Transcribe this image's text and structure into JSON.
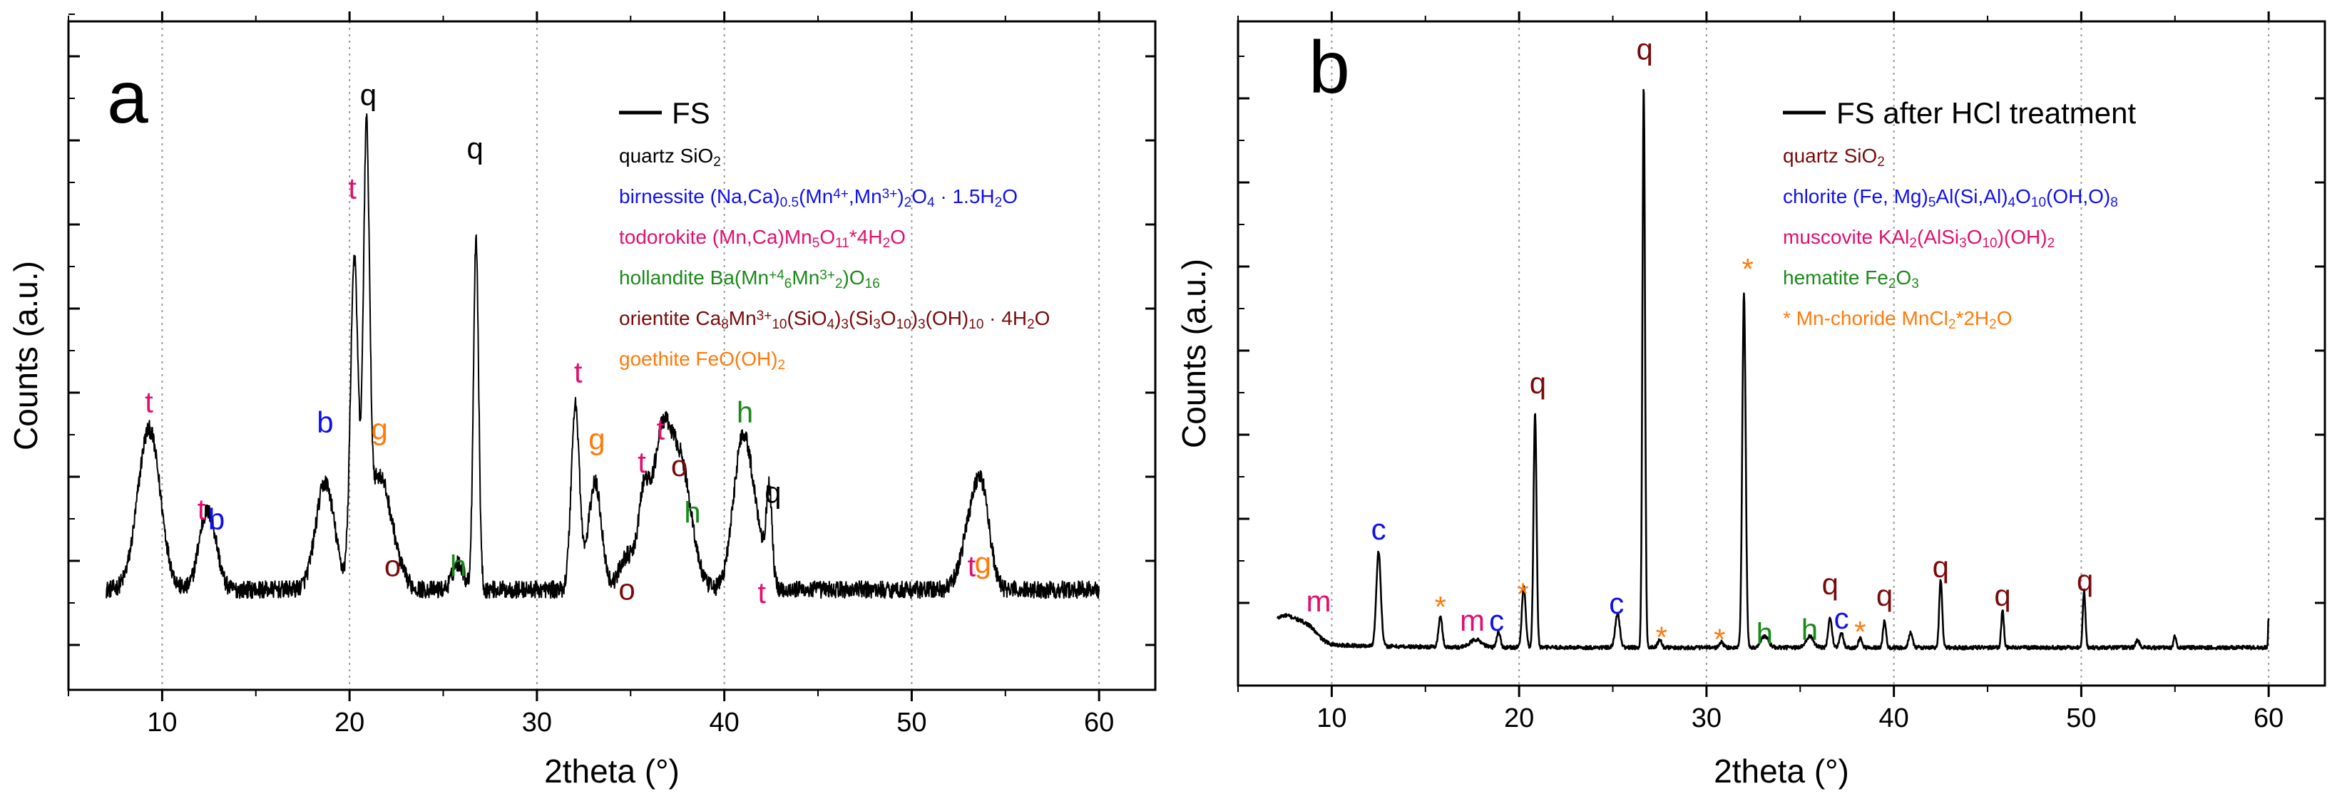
{
  "chart_data": [
    {
      "type": "line",
      "panel_label": "a",
      "series": [
        {
          "name": "FS",
          "color": "#000000",
          "baseline": 3.0,
          "noise": 0.26,
          "peaks": [
            [
              9.3,
              4.8,
              0.6
            ],
            [
              12.2,
              1.6,
              0.35
            ],
            [
              12.7,
              1.4,
              0.35
            ],
            [
              18.7,
              3.2,
              0.5
            ],
            [
              20.25,
              9.5,
              0.2
            ],
            [
              20.9,
              12.0,
              0.16
            ],
            [
              21.4,
              2.5,
              0.6
            ],
            [
              22.0,
              1.3,
              0.6
            ],
            [
              25.8,
              0.8,
              0.3
            ],
            [
              26.75,
              10.5,
              0.14
            ],
            [
              32.05,
              5.5,
              0.22
            ],
            [
              33.1,
              3.2,
              0.35
            ],
            [
              34.8,
              1.0,
              0.4
            ],
            [
              35.7,
              2.6,
              0.3
            ],
            [
              36.6,
              4.0,
              0.45
            ],
            [
              37.4,
              2.8,
              0.5
            ],
            [
              38.0,
              1.8,
              0.5
            ],
            [
              41.0,
              4.6,
              0.5
            ],
            [
              41.9,
              1.0,
              0.4
            ],
            [
              42.4,
              2.6,
              0.15
            ],
            [
              53.2,
              2.0,
              0.5
            ],
            [
              53.8,
              2.2,
              0.4
            ]
          ]
        }
      ],
      "xlabel": "2theta (°)",
      "ylabel": "Counts (a.u.)",
      "xlim": [
        5,
        63
      ],
      "x_ticks": [
        10,
        20,
        30,
        40,
        50,
        60
      ],
      "grid": "vertical dotted",
      "legend": {
        "position": "top-right",
        "main": "FS",
        "entries": [
          {
            "segments": [
              {
                "t": "quartz SiO"
              },
              {
                "t": "2",
                "s": "sub"
              }
            ],
            "color": "#000000"
          },
          {
            "segments": [
              {
                "t": "birnessite (Na,Ca)"
              },
              {
                "t": "0.5",
                "s": "sub"
              },
              {
                "t": "(Mn"
              },
              {
                "t": "4+",
                "s": "sup"
              },
              {
                "t": ",Mn"
              },
              {
                "t": "3+",
                "s": "sup"
              },
              {
                "t": ")"
              },
              {
                "t": "2",
                "s": "sub"
              },
              {
                "t": "O"
              },
              {
                "t": "4",
                "s": "sub"
              },
              {
                "t": " · 1.5H"
              },
              {
                "t": "2",
                "s": "sub"
              },
              {
                "t": "O"
              }
            ],
            "color": "#1010ee"
          },
          {
            "segments": [
              {
                "t": "todorokite (Mn,Ca)Mn"
              },
              {
                "t": "5",
                "s": "sub"
              },
              {
                "t": "O"
              },
              {
                "t": "11",
                "s": "sub"
              },
              {
                "t": "*4H"
              },
              {
                "t": "2",
                "s": "sub"
              },
              {
                "t": "O"
              }
            ],
            "color": "#e0106e"
          },
          {
            "segments": [
              {
                "t": "hollandite Ba(Mn"
              },
              {
                "t": "+4",
                "s": "sup"
              },
              {
                "t": "6",
                "s": "sub"
              },
              {
                "t": "Mn"
              },
              {
                "t": "3+",
                "s": "sup"
              },
              {
                "t": "2",
                "s": "sub"
              },
              {
                "t": ")O"
              },
              {
                "t": "16",
                "s": "sub"
              }
            ],
            "color": "#1a8a1a"
          },
          {
            "segments": [
              {
                "t": "orientite Ca"
              },
              {
                "t": "8",
                "s": "sub"
              },
              {
                "t": "Mn"
              },
              {
                "t": "3+",
                "s": "sup"
              },
              {
                "t": "10",
                "s": "sub"
              },
              {
                "t": "(SiO"
              },
              {
                "t": "4",
                "s": "sub"
              },
              {
                "t": ")"
              },
              {
                "t": "3",
                "s": "sub"
              },
              {
                "t": "(Si"
              },
              {
                "t": "3",
                "s": "sub"
              },
              {
                "t": "O"
              },
              {
                "t": "10",
                "s": "sub"
              },
              {
                "t": ")"
              },
              {
                "t": "3",
                "s": "sub"
              },
              {
                "t": "(OH)"
              },
              {
                "t": "10",
                "s": "sub"
              },
              {
                "t": " · 4H"
              },
              {
                "t": "2",
                "s": "sub"
              },
              {
                "t": "O"
              }
            ],
            "color": "#7a0a0a"
          },
          {
            "segments": [
              {
                "t": "goethite FeO(OH)"
              },
              {
                "t": "2",
                "s": "sub"
              }
            ],
            "color": "#ff7a0a"
          }
        ]
      },
      "annotations": [
        {
          "text": "t",
          "x": 9.3,
          "y": 8.3,
          "color": "#e0106e"
        },
        {
          "text": "t",
          "x": 12.1,
          "y": 5.1,
          "color": "#e0106e"
        },
        {
          "text": "b",
          "x": 12.9,
          "y": 4.8,
          "color": "#1010ee"
        },
        {
          "text": "b",
          "x": 18.7,
          "y": 7.7,
          "color": "#1010ee"
        },
        {
          "text": "t",
          "x": 20.15,
          "y": 14.7,
          "color": "#e0106e"
        },
        {
          "text": "q",
          "x": 21.0,
          "y": 17.5,
          "color": "#000000"
        },
        {
          "text": "g",
          "x": 21.6,
          "y": 7.5,
          "color": "#ff7a0a"
        },
        {
          "text": "o",
          "x": 22.3,
          "y": 3.4,
          "color": "#7a0a0a"
        },
        {
          "text": "h",
          "x": 25.8,
          "y": 3.4,
          "color": "#1a8a1a"
        },
        {
          "text": "q",
          "x": 26.7,
          "y": 15.9,
          "color": "#000000"
        },
        {
          "text": "t",
          "x": 32.2,
          "y": 9.2,
          "color": "#e0106e"
        },
        {
          "text": "g",
          "x": 33.2,
          "y": 7.2,
          "color": "#ff7a0a"
        },
        {
          "text": "o",
          "x": 34.8,
          "y": 2.7,
          "color": "#7a0a0a"
        },
        {
          "text": "t",
          "x": 35.6,
          "y": 6.5,
          "color": "#e0106e"
        },
        {
          "text": "t",
          "x": 36.6,
          "y": 7.5,
          "color": "#e0106e"
        },
        {
          "text": "o",
          "x": 37.6,
          "y": 6.4,
          "color": "#7a0a0a"
        },
        {
          "text": "h",
          "x": 38.3,
          "y": 5.0,
          "color": "#1a8a1a"
        },
        {
          "text": "h",
          "x": 41.1,
          "y": 8.0,
          "color": "#1a8a1a"
        },
        {
          "text": "t",
          "x": 42.0,
          "y": 2.6,
          "color": "#e0106e"
        },
        {
          "text": "q",
          "x": 42.6,
          "y": 5.6,
          "color": "#000000"
        },
        {
          "text": "t",
          "x": 53.2,
          "y": 3.4,
          "color": "#e0106e"
        },
        {
          "text": "g",
          "x": 53.8,
          "y": 3.5,
          "color": "#ff7a0a"
        }
      ]
    },
    {
      "type": "line",
      "panel_label": "b",
      "series": [
        {
          "name": "FS after HCl treatment",
          "color": "#000000",
          "baseline": 1.0,
          "noise": 0.05,
          "peaks": [
            [
              7.5,
              0.7,
              0.8
            ],
            [
              8.8,
              0.3,
              0.5
            ],
            [
              12.5,
              2.5,
              0.12
            ],
            [
              15.8,
              0.8,
              0.1
            ],
            [
              17.7,
              0.2,
              0.3
            ],
            [
              18.9,
              0.4,
              0.1
            ],
            [
              20.25,
              1.6,
              0.1
            ],
            [
              20.85,
              6.2,
              0.08
            ],
            [
              25.25,
              0.9,
              0.12
            ],
            [
              26.65,
              14.8,
              0.07
            ],
            [
              27.5,
              0.2,
              0.1
            ],
            [
              30.8,
              0.15,
              0.1
            ],
            [
              32.0,
              9.3,
              0.09
            ],
            [
              33.1,
              0.3,
              0.2
            ],
            [
              35.5,
              0.3,
              0.2
            ],
            [
              36.6,
              0.8,
              0.1
            ],
            [
              37.2,
              0.4,
              0.1
            ],
            [
              38.2,
              0.25,
              0.1
            ],
            [
              39.5,
              0.7,
              0.08
            ],
            [
              40.9,
              0.4,
              0.1
            ],
            [
              42.5,
              1.8,
              0.08
            ],
            [
              45.8,
              1.0,
              0.07
            ],
            [
              50.15,
              1.5,
              0.07
            ],
            [
              53.0,
              0.2,
              0.1
            ],
            [
              55.0,
              0.3,
              0.07
            ],
            [
              60.0,
              0.8,
              0.03
            ]
          ]
        }
      ],
      "xlabel": "2theta (°)",
      "ylabel": "Counts (a.u.)",
      "xlim": [
        5,
        63
      ],
      "x_ticks": [
        10,
        20,
        30,
        40,
        50,
        60
      ],
      "grid": "vertical dotted",
      "legend": {
        "position": "top-right",
        "main": "FS after HCl treatment",
        "entries": [
          {
            "segments": [
              {
                "t": "quartz SiO"
              },
              {
                "t": "2",
                "s": "sub"
              }
            ],
            "color": "#7a0a0a"
          },
          {
            "segments": [
              {
                "t": "chlorite (Fe, Mg)"
              },
              {
                "t": "5",
                "s": "sub"
              },
              {
                "t": "Al(Si,Al)"
              },
              {
                "t": "4",
                "s": "sub"
              },
              {
                "t": "O"
              },
              {
                "t": "10",
                "s": "sub"
              },
              {
                "t": "(OH,O)"
              },
              {
                "t": "8",
                "s": "sub"
              }
            ],
            "color": "#1010ee"
          },
          {
            "segments": [
              {
                "t": "muscovite KAl"
              },
              {
                "t": "2",
                "s": "sub"
              },
              {
                "t": "(AlSi"
              },
              {
                "t": "3",
                "s": "sub"
              },
              {
                "t": "O"
              },
              {
                "t": "10",
                "s": "sub"
              },
              {
                "t": ")(OH)"
              },
              {
                "t": "2",
                "s": "sub"
              }
            ],
            "color": "#e0106e"
          },
          {
            "segments": [
              {
                "t": "hematite Fe"
              },
              {
                "t": "2",
                "s": "sub"
              },
              {
                "t": "O"
              },
              {
                "t": "3",
                "s": "sub"
              }
            ],
            "color": "#1a8a1a"
          },
          {
            "segments": [
              {
                "t": "* Mn-choride MnCl"
              },
              {
                "t": "2",
                "s": "sub"
              },
              {
                "t": "*2H"
              },
              {
                "t": "2",
                "s": "sub"
              },
              {
                "t": "O"
              }
            ],
            "color": "#ff7a0a"
          }
        ]
      },
      "annotations": [
        {
          "text": "m",
          "x": 9.3,
          "y": 1.95,
          "color": "#e0106e"
        },
        {
          "text": "c",
          "x": 12.5,
          "y": 3.85,
          "color": "#1010ee"
        },
        {
          "text": "*",
          "x": 15.8,
          "y": 1.8,
          "color": "#ff7a0a"
        },
        {
          "text": "m",
          "x": 17.5,
          "y": 1.45,
          "color": "#e0106e"
        },
        {
          "text": "c",
          "x": 18.8,
          "y": 1.45,
          "color": "#1010ee"
        },
        {
          "text": "*",
          "x": 20.2,
          "y": 2.15,
          "color": "#ff7a0a"
        },
        {
          "text": "q",
          "x": 21.0,
          "y": 7.7,
          "color": "#7a0a0a"
        },
        {
          "text": "c",
          "x": 25.2,
          "y": 1.9,
          "color": "#1010ee"
        },
        {
          "text": "q",
          "x": 26.7,
          "y": 16.5,
          "color": "#7a0a0a"
        },
        {
          "text": "*",
          "x": 27.6,
          "y": 1.0,
          "color": "#ff7a0a"
        },
        {
          "text": "*",
          "x": 30.7,
          "y": 0.95,
          "color": "#ff7a0a"
        },
        {
          "text": "*",
          "x": 32.2,
          "y": 10.7,
          "color": "#ff7a0a"
        },
        {
          "text": "h",
          "x": 33.1,
          "y": 1.1,
          "color": "#1a8a1a"
        },
        {
          "text": "h",
          "x": 35.5,
          "y": 1.2,
          "color": "#1a8a1a"
        },
        {
          "text": "q",
          "x": 36.6,
          "y": 2.4,
          "color": "#7a0a0a"
        },
        {
          "text": "c",
          "x": 37.2,
          "y": 1.5,
          "color": "#1010ee"
        },
        {
          "text": "*",
          "x": 38.2,
          "y": 1.15,
          "color": "#ff7a0a"
        },
        {
          "text": "q",
          "x": 39.5,
          "y": 2.1,
          "color": "#7a0a0a"
        },
        {
          "text": "q",
          "x": 42.5,
          "y": 2.85,
          "color": "#7a0a0a"
        },
        {
          "text": "q",
          "x": 45.8,
          "y": 2.1,
          "color": "#7a0a0a"
        },
        {
          "text": "q",
          "x": 50.2,
          "y": 2.5,
          "color": "#7a0a0a"
        }
      ]
    }
  ]
}
